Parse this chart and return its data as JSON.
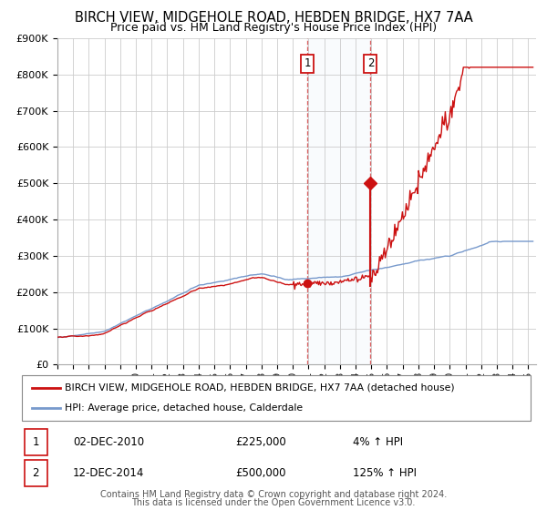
{
  "title": "BIRCH VIEW, MIDGEHOLE ROAD, HEBDEN BRIDGE, HX7 7AA",
  "subtitle": "Price paid vs. HM Land Registry's House Price Index (HPI)",
  "title_fontsize": 10.5,
  "subtitle_fontsize": 9,
  "background_color": "#ffffff",
  "plot_bg_color": "#ffffff",
  "grid_color": "#cccccc",
  "ylim": [
    0,
    900000
  ],
  "yticks": [
    0,
    100000,
    200000,
    300000,
    400000,
    500000,
    600000,
    700000,
    800000,
    900000
  ],
  "xlim_start": 1995.0,
  "xlim_end": 2025.5,
  "hpi_color": "#7799cc",
  "price_color": "#cc1111",
  "marker_color": "#cc1111",
  "vline1_x": 2010.92,
  "vline2_x": 2014.95,
  "shade_alpha": 0.1,
  "shade_color": "#c8d8ee",
  "annotation1_label": "1",
  "annotation2_label": "2",
  "dot1_x": 2010.92,
  "dot1_y": 225000,
  "dot2_x": 2014.95,
  "dot2_y": 500000,
  "dot2_line_bottom": 218000,
  "legend_line1": "BIRCH VIEW, MIDGEHOLE ROAD, HEBDEN BRIDGE, HX7 7AA (detached house)",
  "legend_line2": "HPI: Average price, detached house, Calderdale",
  "row1_num": "1",
  "row1_date": "02-DEC-2010",
  "row1_price": "£225,000",
  "row1_pct": "4% ↑ HPI",
  "row2_num": "2",
  "row2_date": "12-DEC-2014",
  "row2_price": "£500,000",
  "row2_pct": "125% ↑ HPI",
  "footer1": "Contains HM Land Registry data © Crown copyright and database right 2024.",
  "footer2": "This data is licensed under the Open Government Licence v3.0.",
  "footer_fontsize": 7.0
}
